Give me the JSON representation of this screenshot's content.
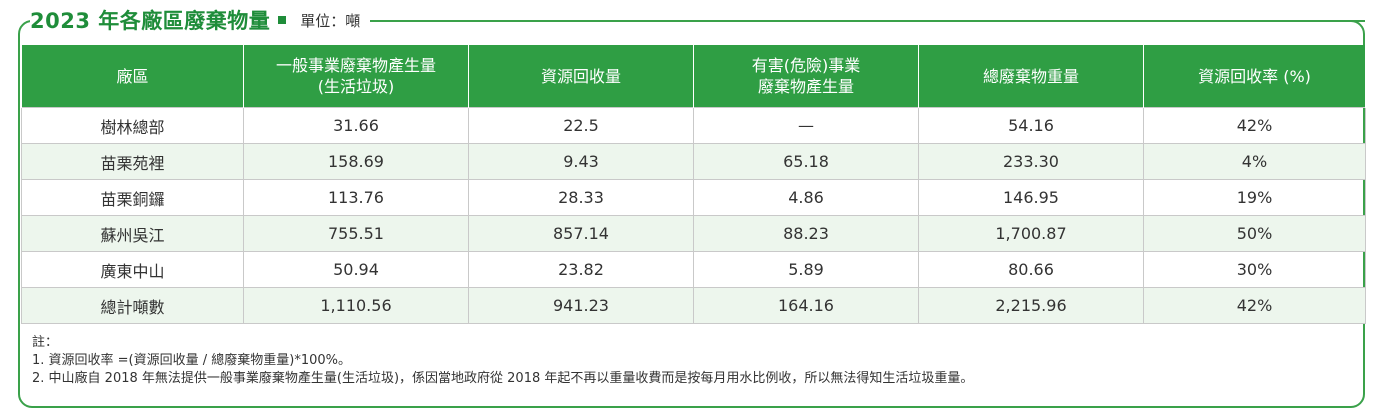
{
  "title": "2023 年各廠區廢棄物量",
  "unit": "單位：噸",
  "colors": {
    "accent": "#2f9e44",
    "stripe": "#edf6ed"
  },
  "table": {
    "headers": [
      "廠區",
      "一般事業廢棄物產生量\n(生活垃圾)",
      "資源回收量",
      "有害(危險)事業\n廢棄物產生量",
      "總廢棄物重量",
      "資源回收率 (%)"
    ],
    "rows": [
      [
        "樹林總部",
        "31.66",
        "22.5",
        "—",
        "54.16",
        "42%"
      ],
      [
        "苗栗苑裡",
        "158.69",
        "9.43",
        "65.18",
        "233.30",
        "4%"
      ],
      [
        "苗栗銅鑼",
        "113.76",
        "28.33",
        "4.86",
        "146.95",
        "19%"
      ],
      [
        "蘇州吳江",
        "755.51",
        "857.14",
        "88.23",
        "1,700.87",
        "50%"
      ],
      [
        "廣東中山",
        "50.94",
        "23.82",
        "5.89",
        "80.66",
        "30%"
      ],
      [
        "總計噸數",
        "1,110.56",
        "941.23",
        "164.16",
        "2,215.96",
        "42%"
      ]
    ]
  },
  "notes": [
    "註：",
    "1. 資源回收率 =(資源回收量 / 總廢棄物重量)*100%。",
    "2. 中山廠自 2018 年無法提供一般事業廢棄物產生量(生活垃圾)，係因當地政府從 2018 年起不再以重量收費而是按每月用水比例收，所以無法得知生活垃圾重量。"
  ]
}
